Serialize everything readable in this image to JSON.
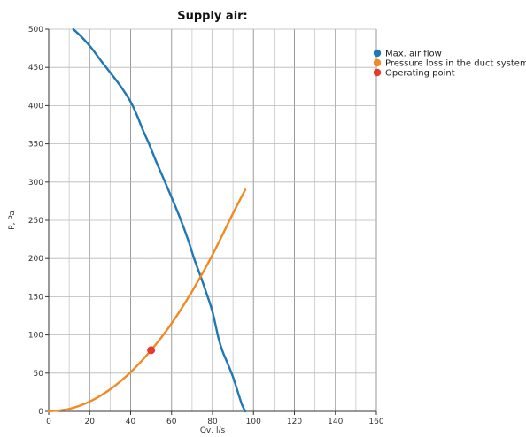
{
  "chart_data": {
    "type": "line",
    "title": "Supply air:",
    "xlabel": "Qv, l/s",
    "ylabel": "P, Pa",
    "xlim": [
      0,
      160
    ],
    "ylim": [
      0,
      500
    ],
    "xticks": [
      0,
      20,
      40,
      60,
      80,
      100,
      120,
      140,
      160
    ],
    "yticks": [
      0,
      50,
      100,
      150,
      200,
      250,
      300,
      350,
      400,
      450,
      500
    ],
    "grid": true,
    "legend_position": "right",
    "series": [
      {
        "name": "Max. air flow",
        "color": "#1f77b4",
        "x": [
          12,
          16,
          21,
          26,
          31,
          36,
          40,
          43,
          46,
          49,
          52,
          56,
          60,
          64,
          68,
          71,
          74,
          77,
          80,
          83,
          85,
          87,
          90,
          93,
          94.5,
          96
        ],
        "y": [
          500,
          490,
          475,
          457,
          440,
          422,
          405,
          388,
          368,
          350,
          330,
          305,
          280,
          254,
          225,
          200,
          178,
          155,
          130,
          95,
          78,
          65,
          45,
          20,
          8,
          0
        ]
      },
      {
        "name": "Pressure loss in the duct system",
        "color": "#f08a24",
        "x": [
          0,
          10,
          20,
          30,
          40,
          50,
          60,
          70,
          80,
          90,
          96
        ],
        "y": [
          0,
          3.2,
          12.8,
          28.8,
          51.2,
          80,
          115,
          157,
          205,
          259,
          290
        ]
      },
      {
        "name": "Operating point",
        "color": "#e53a2e",
        "marker": "point",
        "x": [
          50
        ],
        "y": [
          80
        ]
      }
    ]
  }
}
